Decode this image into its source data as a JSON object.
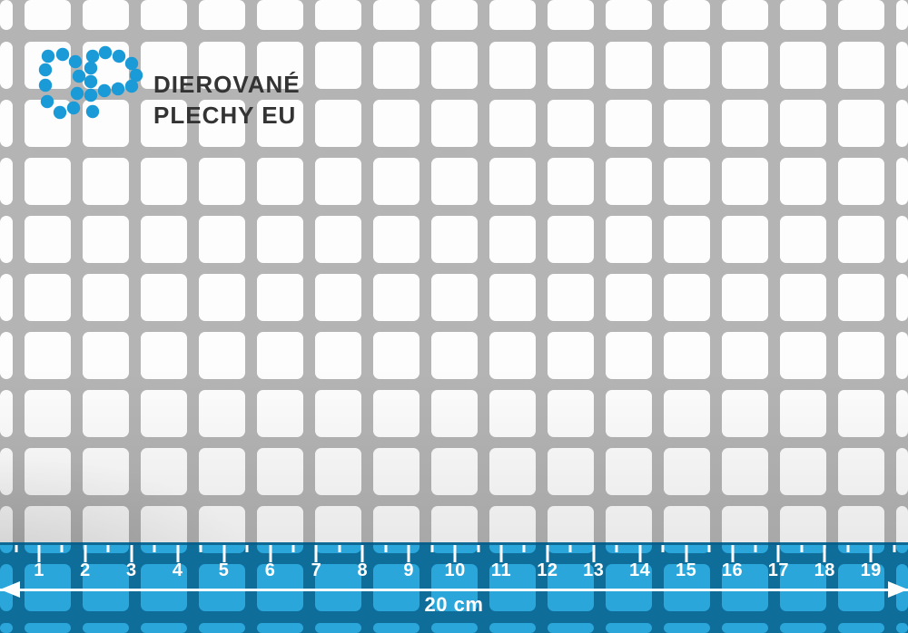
{
  "brand": {
    "logo_letters": "DP",
    "name_line1": "DIEROVANÉ",
    "name_line2": "PLECHY EU"
  },
  "ruler": {
    "numbers": [
      "1",
      "2",
      "3",
      "4",
      "5",
      "6",
      "7",
      "8",
      "9",
      "10",
      "11",
      "12",
      "13",
      "14",
      "15",
      "16",
      "17",
      "18",
      "19"
    ],
    "total_label": "20 cm"
  },
  "colors": {
    "brand_blue": "#1A9BD7",
    "metal_gray": "#B4B4B4",
    "hole_white": "#FDFDFD",
    "brand_text": "#333333",
    "ruler_hole_blue": "#2AA6DB",
    "ruler_bar_blue": "#0F6D99",
    "ruler_marks": "#FFFFFF"
  }
}
